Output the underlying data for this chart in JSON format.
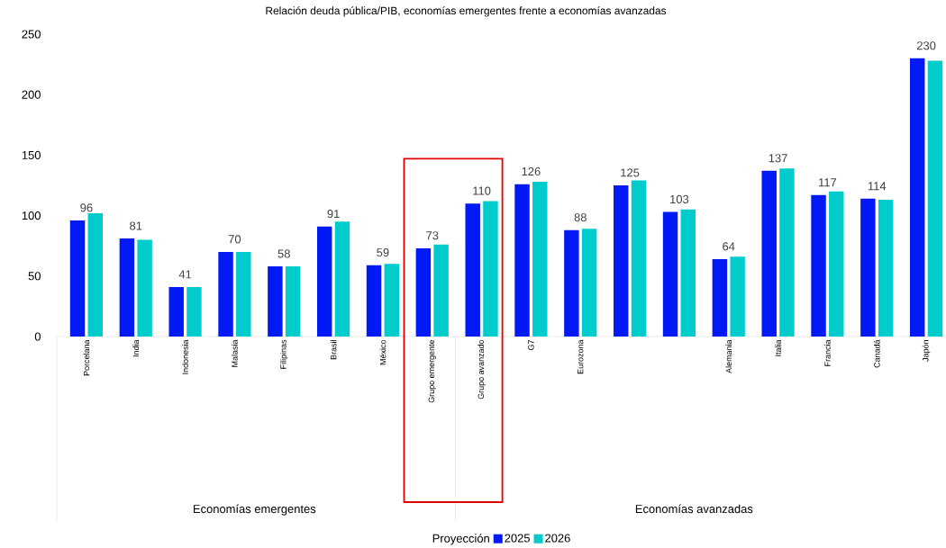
{
  "chart_data": {
    "type": "bar",
    "title": "Relación deuda pública/PIB, economías emergentes frente a economías avanzadas",
    "categories": [
      "Porcelana",
      "India",
      "Indonesia",
      "Malasia",
      "Filipinas",
      "Brasil",
      "México",
      "Grupo emergente",
      "Grupo avanzado",
      "G7",
      "Eurozona",
      null,
      null,
      "Alemania",
      "Italia",
      "Francia",
      "Canadá",
      "Japón"
    ],
    "legend_title": "Proyección",
    "series": [
      {
        "name": "2025",
        "color": "#0019f5",
        "values": [
          96,
          81,
          41,
          70,
          58,
          91,
          59,
          73,
          110,
          126,
          88,
          125,
          103,
          64,
          137,
          117,
          114,
          230
        ],
        "value_labels": [
          "96",
          "81",
          "41",
          "70",
          "58",
          "91",
          "59",
          "73",
          "110",
          "126",
          "88",
          "125",
          "103",
          "64",
          "137",
          "117",
          "114",
          "230"
        ]
      },
      {
        "name": "2026",
        "color": "#00cccc",
        "values": [
          102,
          80,
          41,
          70,
          58,
          95,
          60,
          76,
          112,
          128,
          89,
          129,
          105,
          66,
          139,
          120,
          113,
          228
        ]
      }
    ],
    "annotations": [
      "Economías emergentes",
      "Economías avanzadas"
    ],
    "ylim": [
      0,
      250
    ],
    "yticks": [
      0,
      50,
      100,
      150,
      200,
      250
    ],
    "grid": false,
    "legend": "bottom"
  }
}
